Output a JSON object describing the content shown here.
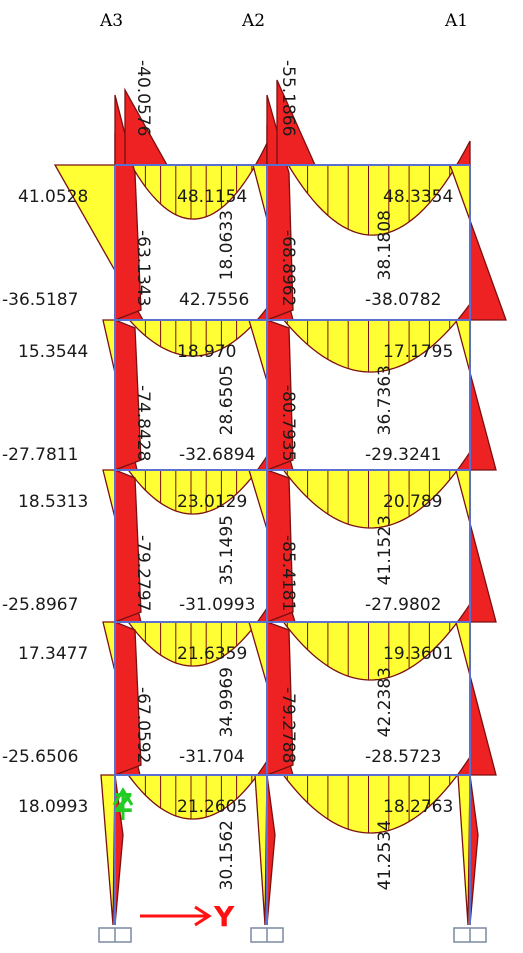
{
  "axis_headers": [
    "A3",
    "A2",
    "A1"
  ],
  "colors": {
    "positive_fill": "#ffff33",
    "negative_fill": "#ee2222",
    "fill_outline": "#7a1010",
    "frame": "#5a6fd0",
    "z_axis": "#22cc22",
    "y_axis": "#ff1111",
    "support": "#7a8aa0"
  },
  "icons": {
    "support": "support-icon"
  },
  "axis_letters": {
    "z": "Z",
    "y": "Y"
  },
  "beam_values": [
    {
      "text": "41.0528",
      "col": 0,
      "level": 0,
      "slot": "top"
    },
    {
      "text": "48.1154",
      "col": 1,
      "level": 0,
      "slot": "top"
    },
    {
      "text": "48.3354",
      "col": 2,
      "level": 0,
      "slot": "top"
    },
    {
      "text": "-36.5187",
      "col": 0,
      "level": 0,
      "slot": "bot"
    },
    {
      "text": "42.7556",
      "col": 1,
      "level": 0,
      "slot": "bot"
    },
    {
      "text": "-38.0782",
      "col": 2,
      "level": 0,
      "slot": "bot"
    },
    {
      "text": "15.3544",
      "col": 0,
      "level": 1,
      "slot": "top"
    },
    {
      "text": "18.970",
      "col": 1,
      "level": 1,
      "slot": "top"
    },
    {
      "text": "17.1795",
      "col": 2,
      "level": 1,
      "slot": "top"
    },
    {
      "text": "-27.7811",
      "col": 0,
      "level": 1,
      "slot": "bot"
    },
    {
      "text": "-32.6894",
      "col": 1,
      "level": 1,
      "slot": "bot"
    },
    {
      "text": "-29.3241",
      "col": 2,
      "level": 1,
      "slot": "bot"
    },
    {
      "text": "18.5313",
      "col": 0,
      "level": 2,
      "slot": "top"
    },
    {
      "text": "23.0129",
      "col": 1,
      "level": 2,
      "slot": "top"
    },
    {
      "text": "20.789",
      "col": 2,
      "level": 2,
      "slot": "top"
    },
    {
      "text": "-25.8967",
      "col": 0,
      "level": 2,
      "slot": "bot"
    },
    {
      "text": "-31.0993",
      "col": 1,
      "level": 2,
      "slot": "bot"
    },
    {
      "text": "-27.9802",
      "col": 2,
      "level": 2,
      "slot": "bot"
    },
    {
      "text": "17.3477",
      "col": 0,
      "level": 3,
      "slot": "top"
    },
    {
      "text": "21.6359",
      "col": 1,
      "level": 3,
      "slot": "top"
    },
    {
      "text": "19.3601",
      "col": 2,
      "level": 3,
      "slot": "top"
    },
    {
      "text": "-25.6506",
      "col": 0,
      "level": 3,
      "slot": "bot"
    },
    {
      "text": "-31.704",
      "col": 1,
      "level": 3,
      "slot": "bot"
    },
    {
      "text": "-28.5723",
      "col": 2,
      "level": 3,
      "slot": "bot"
    },
    {
      "text": "18.0993",
      "col": 0,
      "level": 4,
      "slot": "top"
    },
    {
      "text": "21.2605",
      "col": 1,
      "level": 4,
      "slot": "top"
    },
    {
      "text": "18.2763",
      "col": 2,
      "level": 4,
      "slot": "top"
    }
  ],
  "column_values": [
    {
      "text": "-40.0576",
      "col": 0,
      "level": 0,
      "which": "a"
    },
    {
      "text": "-55.1866",
      "col": 1,
      "level": 0,
      "which": "a"
    },
    {
      "text": "18.0633",
      "col": 1,
      "level": 0,
      "which": "b"
    },
    {
      "text": "38.1808",
      "col": 2,
      "level": 0,
      "which": "b"
    },
    {
      "text": "-63.1343",
      "col": 0,
      "level": 0,
      "which": "c"
    },
    {
      "text": "-68.8962",
      "col": 1,
      "level": 0,
      "which": "c"
    },
    {
      "text": "28.6505",
      "col": 1,
      "level": 1,
      "which": "b"
    },
    {
      "text": "36.7363",
      "col": 2,
      "level": 1,
      "which": "b"
    },
    {
      "text": "-74.8428",
      "col": 0,
      "level": 1,
      "which": "c"
    },
    {
      "text": "-80.7935",
      "col": 1,
      "level": 1,
      "which": "c"
    },
    {
      "text": "35.1495",
      "col": 1,
      "level": 2,
      "which": "b"
    },
    {
      "text": "41.1523",
      "col": 2,
      "level": 2,
      "which": "b"
    },
    {
      "text": "-79.2797",
      "col": 0,
      "level": 2,
      "which": "c"
    },
    {
      "text": "-85.4181",
      "col": 1,
      "level": 2,
      "which": "c"
    },
    {
      "text": "34.9969",
      "col": 1,
      "level": 3,
      "which": "b"
    },
    {
      "text": "42.2383",
      "col": 2,
      "level": 3,
      "which": "b"
    },
    {
      "text": "-67.0592",
      "col": 0,
      "level": 3,
      "which": "c"
    },
    {
      "text": "-79.2788",
      "col": 1,
      "level": 3,
      "which": "c"
    },
    {
      "text": "30.1562",
      "col": 1,
      "level": 4,
      "which": "b"
    },
    {
      "text": "41.2534",
      "col": 2,
      "level": 4,
      "which": "b"
    }
  ]
}
